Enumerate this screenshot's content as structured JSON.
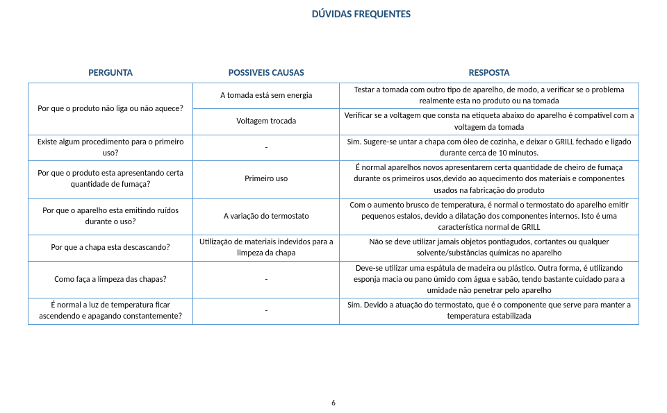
{
  "title": "DÚVIDAS FREQUENTES",
  "headers": {
    "q": "PERGUNTA",
    "c": "POSSIVEIS CAUSAS",
    "r": "RESPOSTA"
  },
  "rows": [
    {
      "q": "Por que o produto não liga ou não aquece?",
      "c": "A tomada está sem energia",
      "r": "Testar a tomada com outro tipo de aparelho, de modo, a verificar se o problema realmente esta no produto ou na tomada",
      "qspan": 2
    },
    {
      "c": "Voltagem trocada",
      "r": "Verificar se a voltagem que consta na etiqueta abaixo do aparelho é compatível com a voltagem da tomada"
    },
    {
      "q": "Existe algum procedimento para o primeiro uso?",
      "c": "-",
      "r": "Sim. Sugere-se untar a chapa com óleo de cozinha, e deixar o GRILL fechado e ligado durante cerca de 10 minutos."
    },
    {
      "q": "Por que o produto esta apresentando certa quantidade de fumaça?",
      "c": "Primeiro uso",
      "r": "É normal aparelhos novos apresentarem certa quantidade de cheiro de fumaça durante os primeiros usos,devido ao aquecimento dos materiais e componentes usados na fabricação do produto"
    },
    {
      "q": "Por que o aparelho esta emitindo ruídos durante o uso?",
      "c": "A variação do termostato",
      "r": "Com o aumento brusco de temperatura, é normal o termostato do aparelho emitir pequenos estalos, devido a dilatação dos componentes internos. Isto é uma característica normal de GRILL"
    },
    {
      "q": "Por que a chapa esta descascando?",
      "c": "Utilização de materiais indevidos para a limpeza da chapa",
      "r": "Não se deve utilizar jamais objetos     pontiagudos, cortantes ou qualquer solvente/substâncias químicas no aparelho"
    },
    {
      "q": "Como faça a limpeza das chapas?",
      "c": "-",
      "r": "Deve-se utilizar uma espátula de madeira ou plástico. Outra forma, é utilizando esponja macia ou pano úmido com água e sabão, tendo bastante cuidado para a umidade não penetrar pelo aparelho"
    },
    {
      "q": "É normal a luz de temperatura ficar ascendendo e apagando constantemente?",
      "c": "-",
      "r": "Sim. Devido a atuação do termostato, que é o componente que serve para manter a temperatura estabilizada"
    }
  ],
  "page_number": "6",
  "colors": {
    "heading": "#1f4e79",
    "border": "#5b9bd5",
    "text": "#000000",
    "bg": "#ffffff"
  }
}
